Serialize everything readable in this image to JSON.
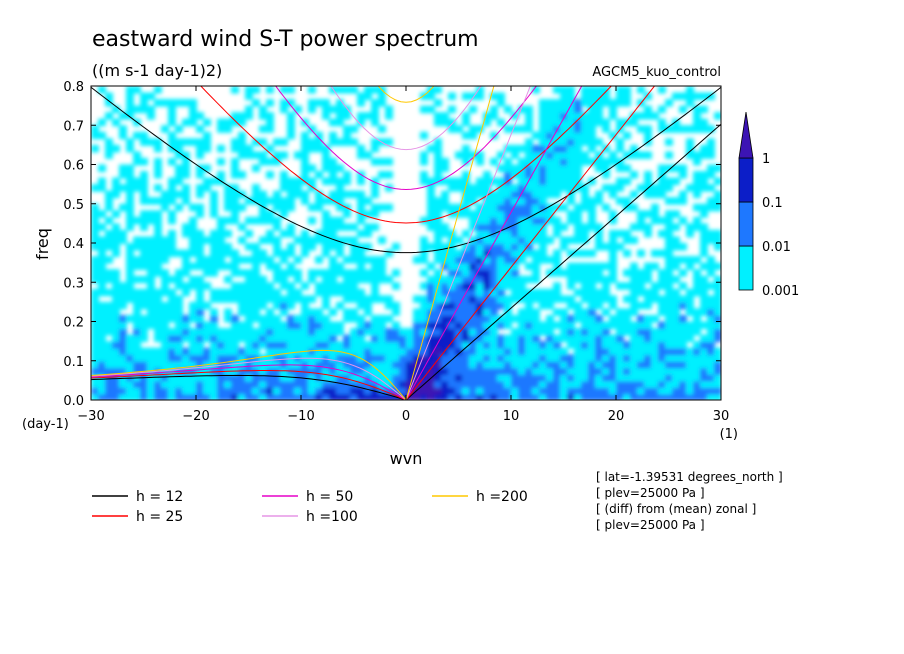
{
  "chart_data": {
    "type": "heatmap",
    "title": "eastward wind S-T power spectrum",
    "subtitle": "((m s-1 day-1)2)",
    "dataset": "AGCM5_kuo_control",
    "xlabel": "wvn",
    "ylabel": "freq",
    "x_unit": "(1)",
    "y_unit": "(day-1)",
    "xlim": [
      -30,
      30
    ],
    "ylim": [
      0,
      0.8
    ],
    "x_ticks": [
      -30,
      -20,
      -10,
      0,
      10,
      20,
      30
    ],
    "y_ticks": [
      0.0,
      0.1,
      0.2,
      0.3,
      0.4,
      0.5,
      0.6,
      0.7,
      0.8
    ],
    "y_tick_labels": [
      "0.0",
      "0.1",
      "0.2",
      "0.3",
      "0.4",
      "0.5",
      "0.6",
      "0.7",
      "0.8"
    ],
    "colorbar": {
      "levels": [
        0.001,
        0.01,
        0.1,
        1
      ],
      "labels": [
        "0.001",
        "0.01",
        "0.1",
        "1"
      ],
      "colors": [
        "#00f0ff",
        "#1e78ff",
        "#0c1ec8",
        "#3c14b4"
      ]
    },
    "legend": [
      {
        "label": "h = 12",
        "h": 12,
        "color": "#000000"
      },
      {
        "label": "h = 25",
        "h": 25,
        "color": "#ff0000"
      },
      {
        "label": "h = 50",
        "h": 50,
        "color": "#e600c8"
      },
      {
        "label": "h =100",
        "h": 100,
        "color": "#e696e6"
      },
      {
        "label": "h =200",
        "h": 200,
        "color": "#ffc800"
      }
    ],
    "annotations": [
      "[ lat=-1.39531 degrees_north ]",
      "[ plev=25000 Pa ]",
      "[ (diff) from (mean) zonal ]",
      "[ plev=25000 Pa ]"
    ]
  }
}
